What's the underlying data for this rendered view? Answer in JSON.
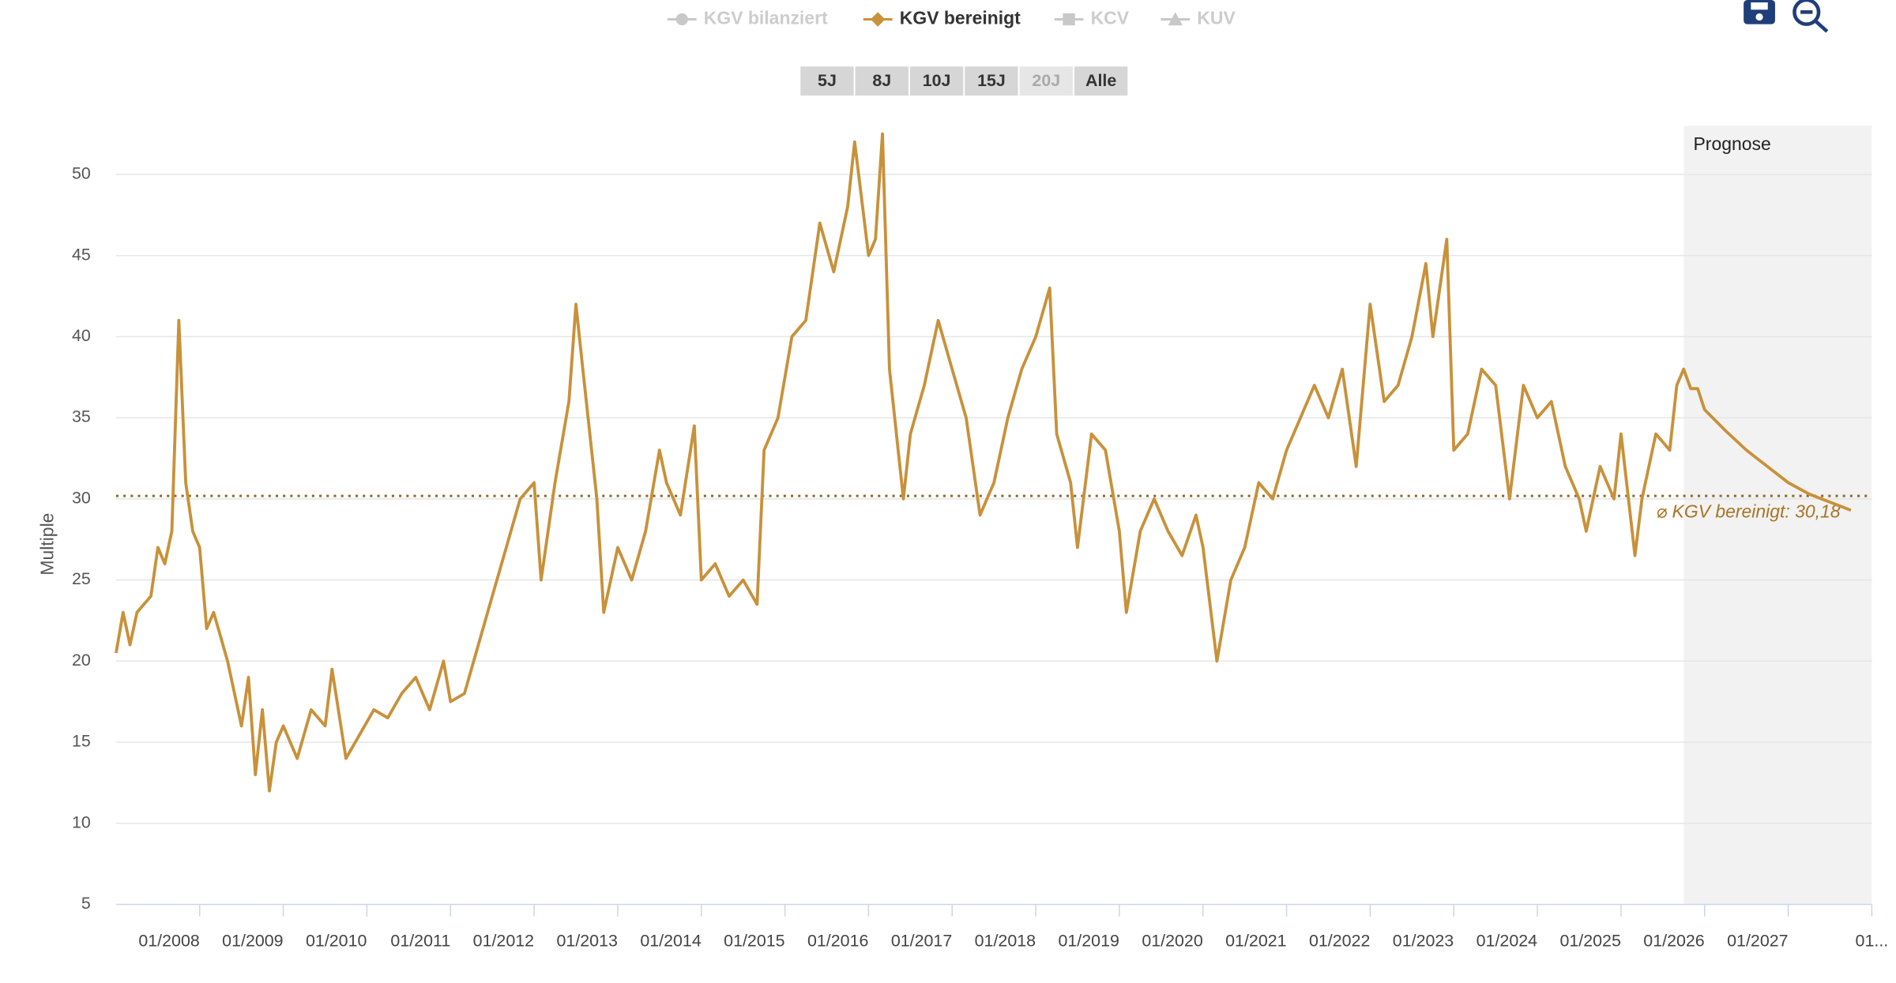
{
  "chart_data": {
    "type": "line",
    "legend": [
      {
        "name": "KGV bilanziert",
        "color": "#c8c8c8",
        "marker": "circle",
        "active": false
      },
      {
        "name": "KGV bereinigt",
        "color": "#c8913a",
        "marker": "diamond",
        "active": true
      },
      {
        "name": "KCV",
        "color": "#c8c8c8",
        "marker": "square",
        "active": false
      },
      {
        "name": "KUV",
        "color": "#c8c8c8",
        "marker": "triangle",
        "active": false
      }
    ],
    "ranges": [
      {
        "label": "5J",
        "enabled": true
      },
      {
        "label": "8J",
        "enabled": true
      },
      {
        "label": "10J",
        "enabled": true
      },
      {
        "label": "15J",
        "enabled": true
      },
      {
        "label": "20J",
        "enabled": false
      },
      {
        "label": "Alle",
        "enabled": true
      }
    ],
    "ylabel": "Multiple",
    "forecast": {
      "label": "Prognose",
      "start": "2025-10"
    },
    "average": {
      "value": 30.18,
      "label": "⌀ KGV bereinigt: 30,18"
    },
    "xlim": [
      "2007-01",
      "2028-01"
    ],
    "xticks": [
      {
        "value": "2008-01",
        "label": "01/2008"
      },
      {
        "value": "2009-01",
        "label": "01/2009"
      },
      {
        "value": "2010-01",
        "label": "01/2010"
      },
      {
        "value": "2011-01",
        "label": "01/2011"
      },
      {
        "value": "2012-01",
        "label": "01/2012"
      },
      {
        "value": "2013-01",
        "label": "01/2013"
      },
      {
        "value": "2014-01",
        "label": "01/2014"
      },
      {
        "value": "2015-01",
        "label": "01/2015"
      },
      {
        "value": "2016-01",
        "label": "01/2016"
      },
      {
        "value": "2017-01",
        "label": "01/2017"
      },
      {
        "value": "2018-01",
        "label": "01/2018"
      },
      {
        "value": "2019-01",
        "label": "01/2019"
      },
      {
        "value": "2020-01",
        "label": "01/2020"
      },
      {
        "value": "2021-01",
        "label": "01/2021"
      },
      {
        "value": "2022-01",
        "label": "01/2022"
      },
      {
        "value": "2023-01",
        "label": "01/2023"
      },
      {
        "value": "2024-01",
        "label": "01/2024"
      },
      {
        "value": "2025-01",
        "label": "01/2025"
      },
      {
        "value": "2026-01",
        "label": "01/2026"
      },
      {
        "value": "2027-01",
        "label": "01/2027"
      },
      {
        "value": "2028-01",
        "label": "01..."
      }
    ],
    "ylim": [
      5,
      53
    ],
    "yticks": [
      5,
      10,
      15,
      20,
      25,
      30,
      35,
      40,
      45,
      50
    ],
    "grid": true,
    "x": [
      "2007-01",
      "2007-02",
      "2007-03",
      "2007-04",
      "2007-05",
      "2007-06",
      "2007-07",
      "2007-08",
      "2007-09",
      "2007-10",
      "2007-11",
      "2007-12",
      "2008-01",
      "2008-02",
      "2008-03",
      "2008-05",
      "2008-07",
      "2008-08",
      "2008-09",
      "2008-10",
      "2008-11",
      "2008-12",
      "2009-01",
      "2009-03",
      "2009-05",
      "2009-07",
      "2009-08",
      "2009-10",
      "2009-12",
      "2010-02",
      "2010-04",
      "2010-06",
      "2010-08",
      "2010-10",
      "2010-12",
      "2011-01",
      "2011-03",
      "2011-05",
      "2011-07",
      "2011-09",
      "2011-11",
      "2012-01",
      "2012-02",
      "2012-04",
      "2012-06",
      "2012-07",
      "2012-08",
      "2012-10",
      "2012-11",
      "2013-01",
      "2013-03",
      "2013-05",
      "2013-07",
      "2013-08",
      "2013-10",
      "2013-12",
      "2014-01",
      "2014-03",
      "2014-05",
      "2014-07",
      "2014-09",
      "2014-10",
      "2014-12",
      "2015-02",
      "2015-04",
      "2015-06",
      "2015-08",
      "2015-10",
      "2015-11",
      "2016-01",
      "2016-02",
      "2016-03",
      "2016-04",
      "2016-06",
      "2016-07",
      "2016-09",
      "2016-11",
      "2017-01",
      "2017-03",
      "2017-05",
      "2017-07",
      "2017-09",
      "2017-11",
      "2018-01",
      "2018-03",
      "2018-04",
      "2018-06",
      "2018-07",
      "2018-09",
      "2018-11",
      "2019-01",
      "2019-02",
      "2019-04",
      "2019-06",
      "2019-08",
      "2019-10",
      "2019-12",
      "2020-01",
      "2020-03",
      "2020-05",
      "2020-07",
      "2020-09",
      "2020-11",
      "2021-01",
      "2021-03",
      "2021-05",
      "2021-07",
      "2021-09",
      "2021-11",
      "2022-01",
      "2022-03",
      "2022-05",
      "2022-07",
      "2022-09",
      "2022-10",
      "2022-12",
      "2023-01",
      "2023-03",
      "2023-05",
      "2023-07",
      "2023-09",
      "2023-11",
      "2024-01",
      "2024-03",
      "2024-05",
      "2024-07",
      "2024-08",
      "2024-10",
      "2024-12",
      "2025-01",
      "2025-03",
      "2025-04",
      "2025-06",
      "2025-08",
      "2025-09",
      "2025-10",
      "2025-11",
      "2025-12",
      "2026-01",
      "2026-04",
      "2026-07",
      "2026-10",
      "2027-01",
      "2027-04",
      "2027-07",
      "2027-10"
    ],
    "series": [
      {
        "name": "KGV bereinigt",
        "color": "#c8913a",
        "values": [
          20.5,
          23,
          21,
          23,
          23.5,
          24,
          27,
          26,
          28,
          41,
          31,
          28,
          27,
          22,
          23,
          20,
          16,
          19,
          13,
          17,
          12,
          15,
          16,
          14,
          17,
          16,
          19.5,
          14,
          15.5,
          17,
          16.5,
          18,
          19,
          17,
          20,
          17.5,
          18,
          21,
          24,
          27,
          30,
          31,
          25,
          31,
          36,
          42,
          38,
          30,
          23,
          27,
          25,
          28,
          33,
          31,
          29,
          34.5,
          25,
          26,
          24,
          25,
          23.5,
          33,
          35,
          40,
          41,
          47,
          44,
          48,
          52,
          45,
          46,
          52.5,
          38,
          30,
          34,
          37,
          41,
          38,
          35,
          29,
          31,
          35,
          38,
          40,
          43,
          34,
          31,
          27,
          34,
          33,
          28,
          23,
          28,
          30,
          28,
          26.5,
          29,
          27,
          20,
          25,
          27,
          31,
          30,
          33,
          35,
          37,
          35,
          38,
          32,
          42,
          36,
          37,
          40,
          44.5,
          40,
          46,
          33,
          34,
          38,
          37,
          30,
          37,
          35,
          36,
          32,
          30,
          28,
          32,
          30,
          34,
          26.5,
          30,
          34,
          33,
          37,
          38,
          36.8,
          36.8,
          35.5,
          34.2,
          33,
          32,
          31,
          30.3,
          29.8,
          29.3
        ]
      }
    ]
  }
}
